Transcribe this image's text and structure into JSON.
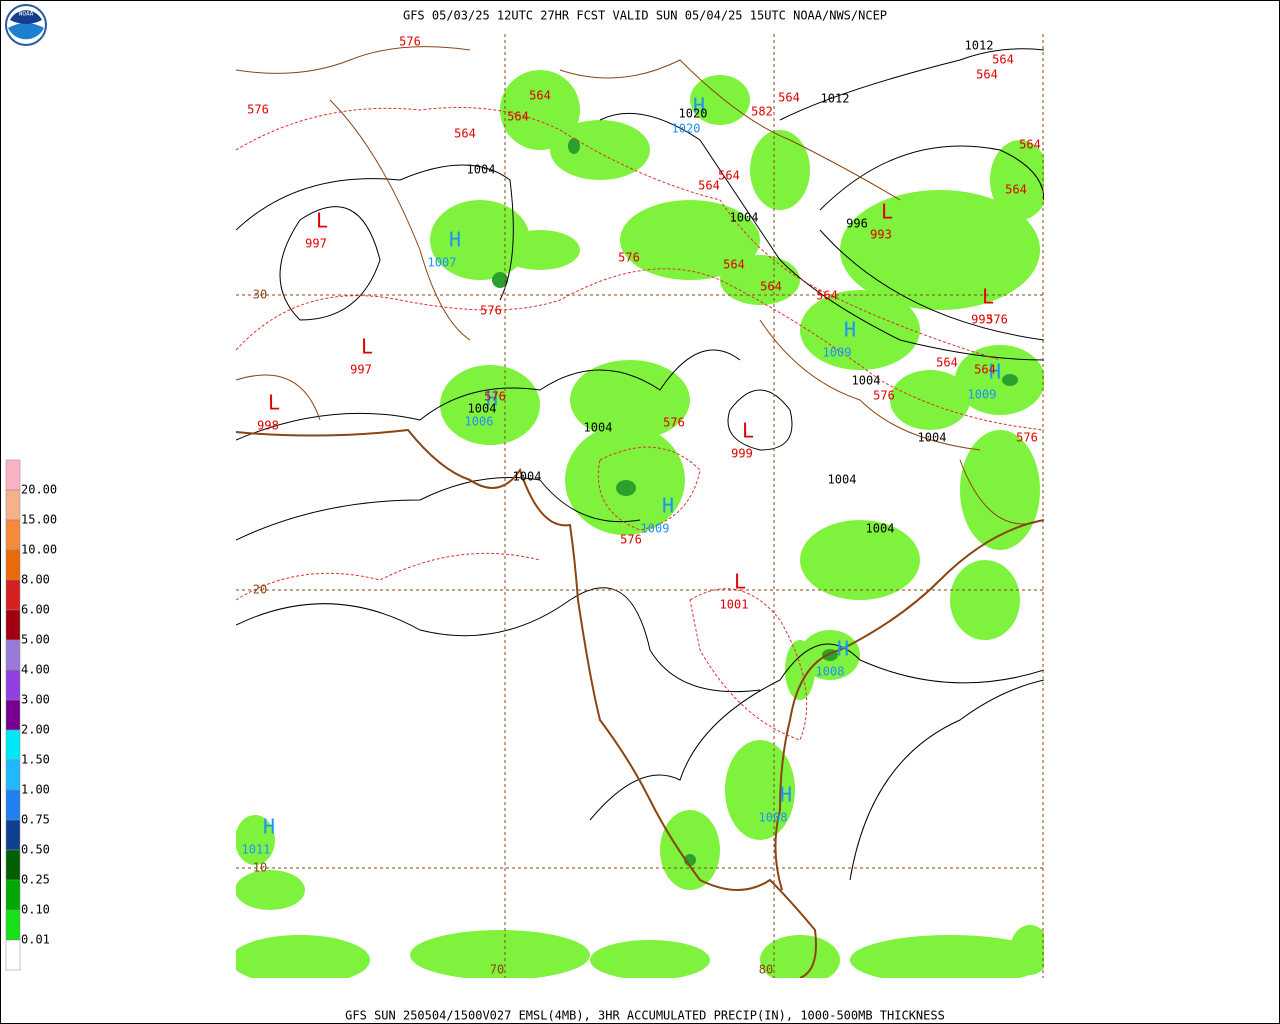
{
  "header": {
    "title": "GFS 05/03/25 12UTC 27HR FCST VALID SUN 05/04/25 15UTC NOAA/NWS/NCEP",
    "logo": "NOAA"
  },
  "footer": {
    "caption": "GFS SUN 250504/1500V027 EMSL(4MB), 3HR ACCUMULATED PRECIP(IN), 1000-500MB THICKNESS"
  },
  "legend": {
    "labels": [
      "20.00",
      "15.00",
      "10.00",
      "8.00",
      "6.00",
      "5.00",
      "4.00",
      "3.00",
      "2.00",
      "1.50",
      "1.00",
      "0.75",
      "0.50",
      "0.25",
      "0.10",
      "0.01"
    ]
  },
  "map": {
    "latitude_labels": [
      "30",
      "20",
      "10"
    ],
    "longitude_labels": [
      "70",
      "80"
    ],
    "lows": [
      {
        "symbol": "L",
        "pressure": "997"
      },
      {
        "symbol": "L",
        "pressure": "997"
      },
      {
        "symbol": "L",
        "pressure": "998"
      },
      {
        "symbol": "L",
        "pressure": "993"
      },
      {
        "symbol": "L",
        "pressure": "999"
      },
      {
        "symbol": "L",
        "pressure": "1001"
      },
      {
        "symbol": "L",
        "pressure": "993"
      }
    ],
    "highs": [
      {
        "symbol": "H",
        "pressure": "1020"
      },
      {
        "symbol": "H",
        "pressure": "1007"
      },
      {
        "symbol": "H",
        "pressure": "1009"
      },
      {
        "symbol": "H",
        "pressure": "1006"
      },
      {
        "symbol": "H",
        "pressure": "1009"
      },
      {
        "symbol": "H",
        "pressure": "1009"
      },
      {
        "symbol": "H",
        "pressure": "1008"
      },
      {
        "symbol": "H",
        "pressure": "1008"
      },
      {
        "symbol": "H",
        "pressure": "1011"
      }
    ],
    "isobar_labels": [
      "1012",
      "1012",
      "1020",
      "1004",
      "1004",
      "996",
      "1004",
      "1004",
      "1004",
      "1004",
      "1004",
      "1004",
      "1004"
    ],
    "thickness_labels": [
      "576",
      "576",
      "564",
      "564",
      "564",
      "564",
      "582",
      "564",
      "564",
      "564",
      "564",
      "564",
      "576",
      "576",
      "564",
      "564",
      "576",
      "576",
      "576",
      "576",
      "564",
      "564",
      "564",
      "576",
      "576",
      "564"
    ]
  }
}
